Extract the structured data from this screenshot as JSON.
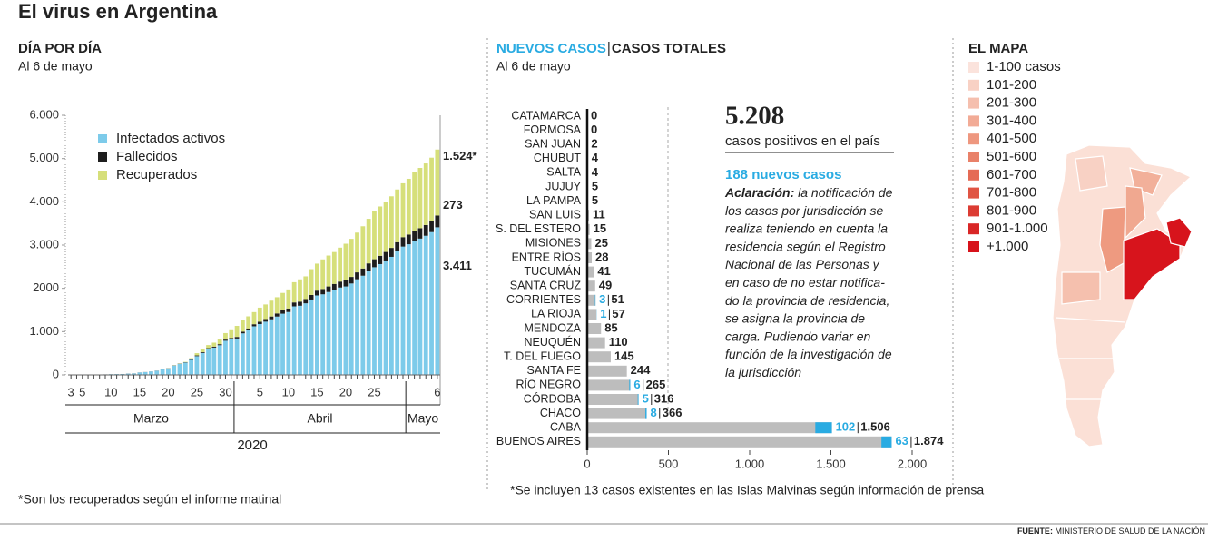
{
  "title": "El virus en Argentina",
  "chart_data": [
    {
      "type": "bar",
      "stacked": true,
      "title": "DÍA POR DÍA",
      "subtitle": "Al 6 de mayo",
      "categories": [
        "3",
        null,
        "5",
        null,
        null,
        null,
        null,
        "10",
        null,
        null,
        null,
        null,
        "15",
        null,
        null,
        null,
        null,
        "20",
        null,
        null,
        null,
        null,
        "25",
        null,
        null,
        null,
        null,
        "30",
        null,
        null,
        null,
        null,
        null,
        "5",
        null,
        null,
        null,
        null,
        "10",
        null,
        null,
        null,
        null,
        "15",
        null,
        null,
        null,
        null,
        "20",
        null,
        null,
        null,
        null,
        "25",
        null,
        null,
        null,
        null,
        null,
        null,
        null,
        null,
        null,
        null,
        "6"
      ],
      "month_labels": [
        "Marzo",
        "Abril",
        "Mayo"
      ],
      "year_label": "2020",
      "series": [
        {
          "name": "Infectados activos",
          "color": "#7dcbea",
          "values": [
            1,
            1,
            2,
            2,
            7,
            8,
            11,
            16,
            18,
            20,
            29,
            32,
            54,
            63,
            77,
            94,
            125,
            151,
            216,
            253,
            284,
            348,
            433,
            507,
            598,
            631,
            686,
            789,
            826,
            841,
            960,
            1030,
            1123,
            1175,
            1230,
            1285,
            1348,
            1414,
            1453,
            1584,
            1598,
            1654,
            1742,
            1836,
            1862,
            1915,
            1970,
            2019,
            2044,
            2112,
            2210,
            2292,
            2401,
            2488,
            2560,
            2644,
            2728,
            2853,
            2965,
            3019,
            3090,
            3150,
            3215,
            3300,
            3411
          ],
          "value_labels": [
            null,
            null,
            null,
            null,
            null,
            null,
            null,
            null,
            null,
            null,
            null,
            null,
            null,
            null,
            null,
            null,
            null,
            null,
            null,
            null,
            null,
            null,
            null,
            null,
            null,
            null,
            null,
            null,
            null,
            null,
            null,
            null,
            null,
            null,
            null,
            null,
            null,
            null,
            null,
            null,
            null,
            null,
            null,
            null,
            null,
            null,
            null,
            null,
            null,
            null,
            null,
            null,
            null,
            null,
            null,
            null,
            null,
            null,
            null,
            null,
            null,
            null,
            null,
            null,
            "3.411"
          ]
        },
        {
          "name": "Fallecidos",
          "color": "#1e1e1e",
          "values": [
            0,
            0,
            0,
            0,
            1,
            1,
            1,
            1,
            1,
            1,
            2,
            2,
            2,
            2,
            2,
            3,
            3,
            4,
            4,
            6,
            8,
            12,
            17,
            19,
            20,
            23,
            24,
            27,
            28,
            36,
            39,
            44,
            48,
            54,
            60,
            65,
            72,
            79,
            82,
            90,
            95,
            98,
            105,
            111,
            122,
            129,
            132,
            137,
            147,
            152,
            159,
            167,
            176,
            185,
            192,
            197,
            207,
            214,
            218,
            225,
            237,
            240,
            248,
            260,
            273
          ]
        },
        {
          "name": "Recuperados",
          "color": "#d6df7a",
          "values": [
            0,
            0,
            0,
            0,
            0,
            0,
            0,
            0,
            0,
            0,
            0,
            0,
            0,
            0,
            0,
            0,
            0,
            3,
            5,
            7,
            9,
            27,
            52,
            63,
            72,
            91,
            110,
            150,
            200,
            256,
            266,
            279,
            280,
            325,
            338,
            365,
            375,
            401,
            440,
            468,
            515,
            525,
            596,
            624,
            685,
            714,
            737,
            785,
            840,
            880,
            919,
            976,
            1030,
            1107,
            1140,
            1162,
            1192,
            1218,
            1245,
            1288,
            1354,
            1393,
            1424,
            1460,
            1524
          ],
          "value_labels": [
            null,
            null,
            null,
            null,
            null,
            null,
            null,
            null,
            null,
            null,
            null,
            null,
            null,
            null,
            null,
            null,
            null,
            null,
            null,
            null,
            null,
            null,
            null,
            null,
            null,
            null,
            null,
            null,
            null,
            null,
            null,
            null,
            null,
            null,
            null,
            null,
            null,
            null,
            null,
            null,
            null,
            null,
            null,
            null,
            null,
            null,
            null,
            null,
            null,
            null,
            null,
            null,
            null,
            null,
            null,
            null,
            null,
            null,
            null,
            null,
            null,
            null,
            null,
            null,
            "1.524*"
          ]
        }
      ],
      "ylim": [
        0,
        6000
      ],
      "yticks": [
        0,
        {
          "value": 1000,
          "label": "1.000"
        },
        2000,
        {
          "value": 3000,
          "label": "3.000"
        },
        {
          "value": 4000,
          "label": "4.000"
        },
        {
          "value": 5000,
          "label": "5.000"
        },
        {
          "value": 6000,
          "label": "6.000"
        }
      ],
      "footnote": "*Son los recuperados según el informe matinal"
    },
    {
      "type": "hbar",
      "subtitle": "Al 6 de mayo",
      "categories": [
        "CATAMARCA",
        "FORMOSA",
        "SAN JUAN",
        "CHUBUT",
        "SALTA",
        "JUJUY",
        "LA PAMPA",
        "SAN LUIS",
        "S. DEL ESTERO",
        "MISIONES",
        "ENTRE RÍOS",
        "TUCUMÁN",
        "SANTA CRUZ",
        "CORRIENTES",
        "LA RIOJA",
        "MENDOZA",
        "NEUQUÉN",
        "T. DEL FUEGO",
        "SANTA FE",
        "RÍO NEGRO",
        "CÓRDOBA",
        "CHACO",
        "CABA",
        "BUENOS AIRES"
      ],
      "series": [
        {
          "name": "CASOS TOTALES",
          "color": "#bdbdbd",
          "values": [
            0,
            0,
            2,
            4,
            4,
            5,
            5,
            11,
            15,
            25,
            28,
            41,
            49,
            51,
            57,
            85,
            110,
            145,
            244,
            265,
            316,
            366,
            1506,
            1874
          ],
          "value_labels": [
            null,
            null,
            null,
            null,
            null,
            null,
            null,
            null,
            null,
            null,
            null,
            null,
            null,
            null,
            null,
            null,
            null,
            null,
            null,
            null,
            null,
            null,
            "1.506",
            "1.874"
          ]
        },
        {
          "name": "NUEVOS CASOS",
          "color": "#29abe2",
          "values": [
            null,
            null,
            null,
            null,
            null,
            null,
            null,
            null,
            null,
            null,
            null,
            null,
            null,
            3,
            1,
            null,
            null,
            null,
            null,
            6,
            5,
            8,
            102,
            63
          ]
        }
      ],
      "xlim": [
        0,
        2000
      ],
      "xticks": [
        0,
        500,
        {
          "value": 1000,
          "label": "1.000"
        },
        {
          "value": 1500,
          "label": "1.500"
        },
        {
          "value": 2000,
          "label": "2.000"
        }
      ],
      "callout": {
        "total": "5.208",
        "total_label": "casos positivos en el país",
        "new_cases": "188 nuevos casos",
        "note_label": "Aclaración:",
        "note_lines": [
          "la notificación de",
          "los casos por jurisdicción se",
          "realiza teniendo en cuenta la",
          "residencia según el Registro",
          "Nacional de las Personas y",
          "en caso de no estar notifica-",
          "do la provincia de residencia,",
          "se asigna la provincia de",
          "carga. Pudiendo variar en",
          "función de la investigación de",
          "la jurisdicción"
        ]
      },
      "footnote": "*Se incluyen 13 casos existentes en las Islas Malvinas según información de prensa"
    }
  ],
  "map": {
    "title": "EL MAPA",
    "legend": [
      {
        "label": "1-100 casos",
        "color": "#fbe3dc"
      },
      {
        "label": "101-200",
        "color": "#f8d1c4"
      },
      {
        "label": "201-300",
        "color": "#f5bfae"
      },
      {
        "label": "301-400",
        "color": "#f2ab96"
      },
      {
        "label": "401-500",
        "color": "#ee977f"
      },
      {
        "label": "501-600",
        "color": "#e98169"
      },
      {
        "label": "601-700",
        "color": "#e56b55"
      },
      {
        "label": "701-800",
        "color": "#e05443"
      },
      {
        "label": "801-900",
        "color": "#dc3c33"
      },
      {
        "label": "901-1.000",
        "color": "#d92626"
      },
      {
        "label": "+1.000",
        "color": "#d7121a"
      }
    ]
  },
  "source": {
    "label": "FUENTE:",
    "text": "MINISTERIO DE SALUD DE LA NACIÓN"
  }
}
